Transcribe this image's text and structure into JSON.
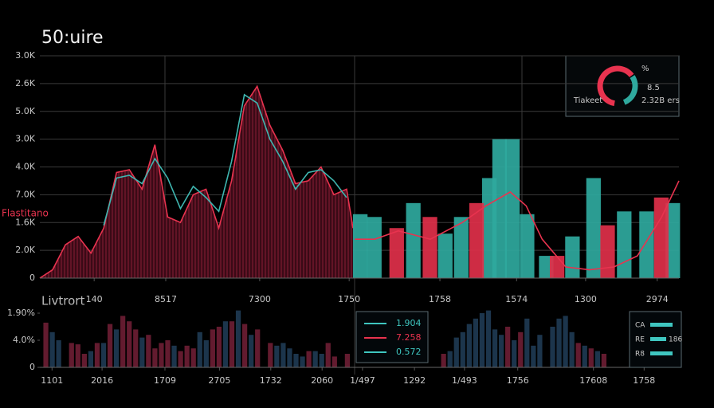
{
  "chart_data": [
    {
      "type": "area",
      "title": "50:uire",
      "ylabel": "Flastitano",
      "xlim": [
        0,
        100
      ],
      "ylim": [
        0,
        8
      ],
      "grid": true,
      "yticks": [
        {
          "value": 8,
          "label": "3.0K"
        },
        {
          "value": 7,
          "label": "2.6K"
        },
        {
          "value": 6,
          "label": "5.0K"
        },
        {
          "value": 5,
          "label": "3.0K"
        },
        {
          "value": 4,
          "label": "4.0K"
        },
        {
          "value": 3,
          "label": "7.0K"
        },
        {
          "value": 2,
          "label": "1.6K"
        },
        {
          "value": 1,
          "label": "2.0K"
        },
        0
      ],
      "xticks": [
        {
          "value": 8.5,
          "label": "140"
        },
        {
          "value": 19.7,
          "label": "8517"
        },
        {
          "value": 34.4,
          "label": "7300"
        },
        {
          "value": 48.4,
          "label": "1750"
        },
        {
          "value": 62.6,
          "label": "1758"
        },
        {
          "value": 74.6,
          "label": "1574"
        },
        {
          "value": 85.4,
          "label": "1300"
        },
        {
          "value": 96.6,
          "label": "2974"
        }
      ],
      "series": [
        {
          "type": "area",
          "color": "#e8334f",
          "x": [
            0,
            2,
            4,
            6,
            8,
            10,
            12,
            14,
            16,
            18,
            20,
            22,
            24,
            26,
            28,
            30,
            32,
            34,
            36,
            38,
            40,
            42,
            44,
            46,
            48,
            49
          ],
          "values": [
            0,
            0.3,
            1.2,
            1.5,
            0.9,
            1.8,
            3.8,
            3.9,
            3.2,
            4.8,
            2.2,
            2.0,
            3.0,
            3.2,
            1.8,
            3.5,
            6.2,
            6.9,
            5.5,
            4.6,
            3.4,
            3.5,
            4.0,
            3.0,
            3.2,
            1.8
          ]
        },
        {
          "type": "line",
          "color": "#3fb6b0",
          "x": [
            10,
            12,
            14,
            16,
            18,
            20,
            22,
            24,
            26,
            28,
            30,
            32,
            34,
            36,
            38,
            40,
            42,
            44,
            46,
            48
          ],
          "values": [
            1.9,
            3.6,
            3.7,
            3.4,
            4.3,
            3.6,
            2.5,
            3.3,
            2.9,
            2.4,
            4.2,
            6.6,
            6.3,
            5.0,
            4.2,
            3.2,
            3.8,
            3.9,
            3.5,
            2.9
          ]
        },
        {
          "type": "bar",
          "color": "#2fa99e",
          "x": [
            50.2,
            52.4,
            58.5,
            63.5,
            66.0,
            70.4,
            72.0,
            74.0,
            76.3,
            79.3,
            83.4,
            86.7,
            91.5,
            95.0,
            99.1
          ],
          "values": [
            2.3,
            2.2,
            2.7,
            1.6,
            2.2,
            3.6,
            5.0,
            5.0,
            2.3,
            0.8,
            1.5,
            3.6,
            2.4,
            2.4,
            2.7
          ]
        },
        {
          "type": "bar",
          "color": "#e0304a",
          "x": [
            55.9,
            61.1,
            68.4,
            81.0,
            88.9,
            97.3
          ],
          "values": [
            1.8,
            2.2,
            2.7,
            0.8,
            1.9,
            2.9
          ]
        },
        {
          "type": "line",
          "color": "#e8334f",
          "x": [
            49.3,
            52.4,
            56.1,
            61.1,
            66.1,
            69.8,
            73.6,
            76.1,
            78.6,
            82.3,
            86.0,
            89.8,
            93.5,
            97.3,
            100
          ],
          "values": [
            1.4,
            1.4,
            1.7,
            1.4,
            2.0,
            2.6,
            3.1,
            2.6,
            1.4,
            0.4,
            0.3,
            0.4,
            0.8,
            2.2,
            3.5
          ]
        }
      ]
    },
    {
      "type": "bar",
      "title": "Livtrort",
      "xlim": [
        0,
        100
      ],
      "ylim": [
        0,
        2.3
      ],
      "grid": false,
      "yticks": [
        {
          "value": 2,
          "label": "1.90%"
        },
        {
          "value": 1,
          "label": "4.0%"
        },
        0
      ],
      "xticks": [
        {
          "value": 1.9,
          "label": "1101"
        },
        {
          "value": 9.7,
          "label": "2016"
        },
        {
          "value": 19.5,
          "label": "1709"
        },
        {
          "value": 28,
          "label": "2705"
        },
        {
          "value": 36,
          "label": "1732"
        },
        {
          "value": 44,
          "label": "2060"
        },
        {
          "value": 50.3,
          "label": "1/497"
        },
        {
          "value": 58.4,
          "label": "1292"
        },
        {
          "value": 66.2,
          "label": "1/493"
        },
        {
          "value": 74.5,
          "label": "1756"
        },
        {
          "value": 86.3,
          "label": "17608"
        },
        {
          "value": 94.2,
          "label": "1758"
        }
      ],
      "series": [
        {
          "color": "#6b1d33",
          "x": [
            1,
            5,
            6,
            7,
            9,
            11,
            13,
            14,
            15,
            17,
            18,
            19,
            20,
            22,
            23,
            24,
            27,
            28,
            30,
            32,
            34,
            36,
            42,
            45,
            46,
            48,
            63,
            73,
            75,
            84,
            86,
            88
          ],
          "values": [
            1.65,
            0.9,
            0.85,
            0.5,
            0.9,
            1.6,
            1.9,
            1.7,
            1.4,
            1.2,
            0.7,
            0.9,
            1.0,
            0.6,
            0.8,
            0.7,
            1.4,
            1.5,
            1.7,
            1.6,
            1.4,
            0.9,
            0.6,
            0.9,
            0.4,
            0.5,
            0.5,
            1.5,
            1.3,
            0.9,
            0.7,
            0.5
          ]
        },
        {
          "color": "#1e3a52",
          "x": [
            2,
            3,
            8,
            10,
            12,
            16,
            21,
            25,
            26,
            29,
            31,
            33,
            37,
            38,
            39,
            40,
            41,
            43,
            44,
            64,
            65,
            66,
            67,
            68,
            69,
            70,
            71,
            72,
            74,
            76,
            77,
            78,
            80,
            81,
            82,
            83,
            85,
            87
          ],
          "values": [
            1.3,
            1.0,
            0.6,
            0.9,
            1.4,
            1.1,
            0.8,
            1.3,
            1.0,
            1.7,
            2.1,
            1.2,
            0.8,
            0.9,
            0.7,
            0.5,
            0.4,
            0.6,
            0.5,
            0.6,
            1.1,
            1.3,
            1.6,
            1.8,
            2.0,
            2.1,
            1.4,
            1.2,
            1.0,
            1.8,
            0.8,
            1.2,
            1.5,
            1.8,
            1.9,
            1.3,
            0.8,
            0.6
          ]
        }
      ],
      "legend": [
        {
          "label": "1.904",
          "color": "#3fc6c0"
        },
        {
          "label": "7.258",
          "color": "#e8334f"
        },
        {
          "label": "0.572",
          "color": "#3fc6c0"
        }
      ],
      "key": [
        {
          "label": "CA"
        },
        {
          "label": "RE",
          "note": "186"
        },
        {
          "label": "R8"
        }
      ]
    },
    {
      "type": "donut",
      "values": [
        62,
        28
      ],
      "colors": [
        "#e8334f",
        "#2fa99e"
      ],
      "annotations": [
        "%",
        "Tiakeet",
        "8.5",
        "2.32B ers"
      ]
    }
  ]
}
